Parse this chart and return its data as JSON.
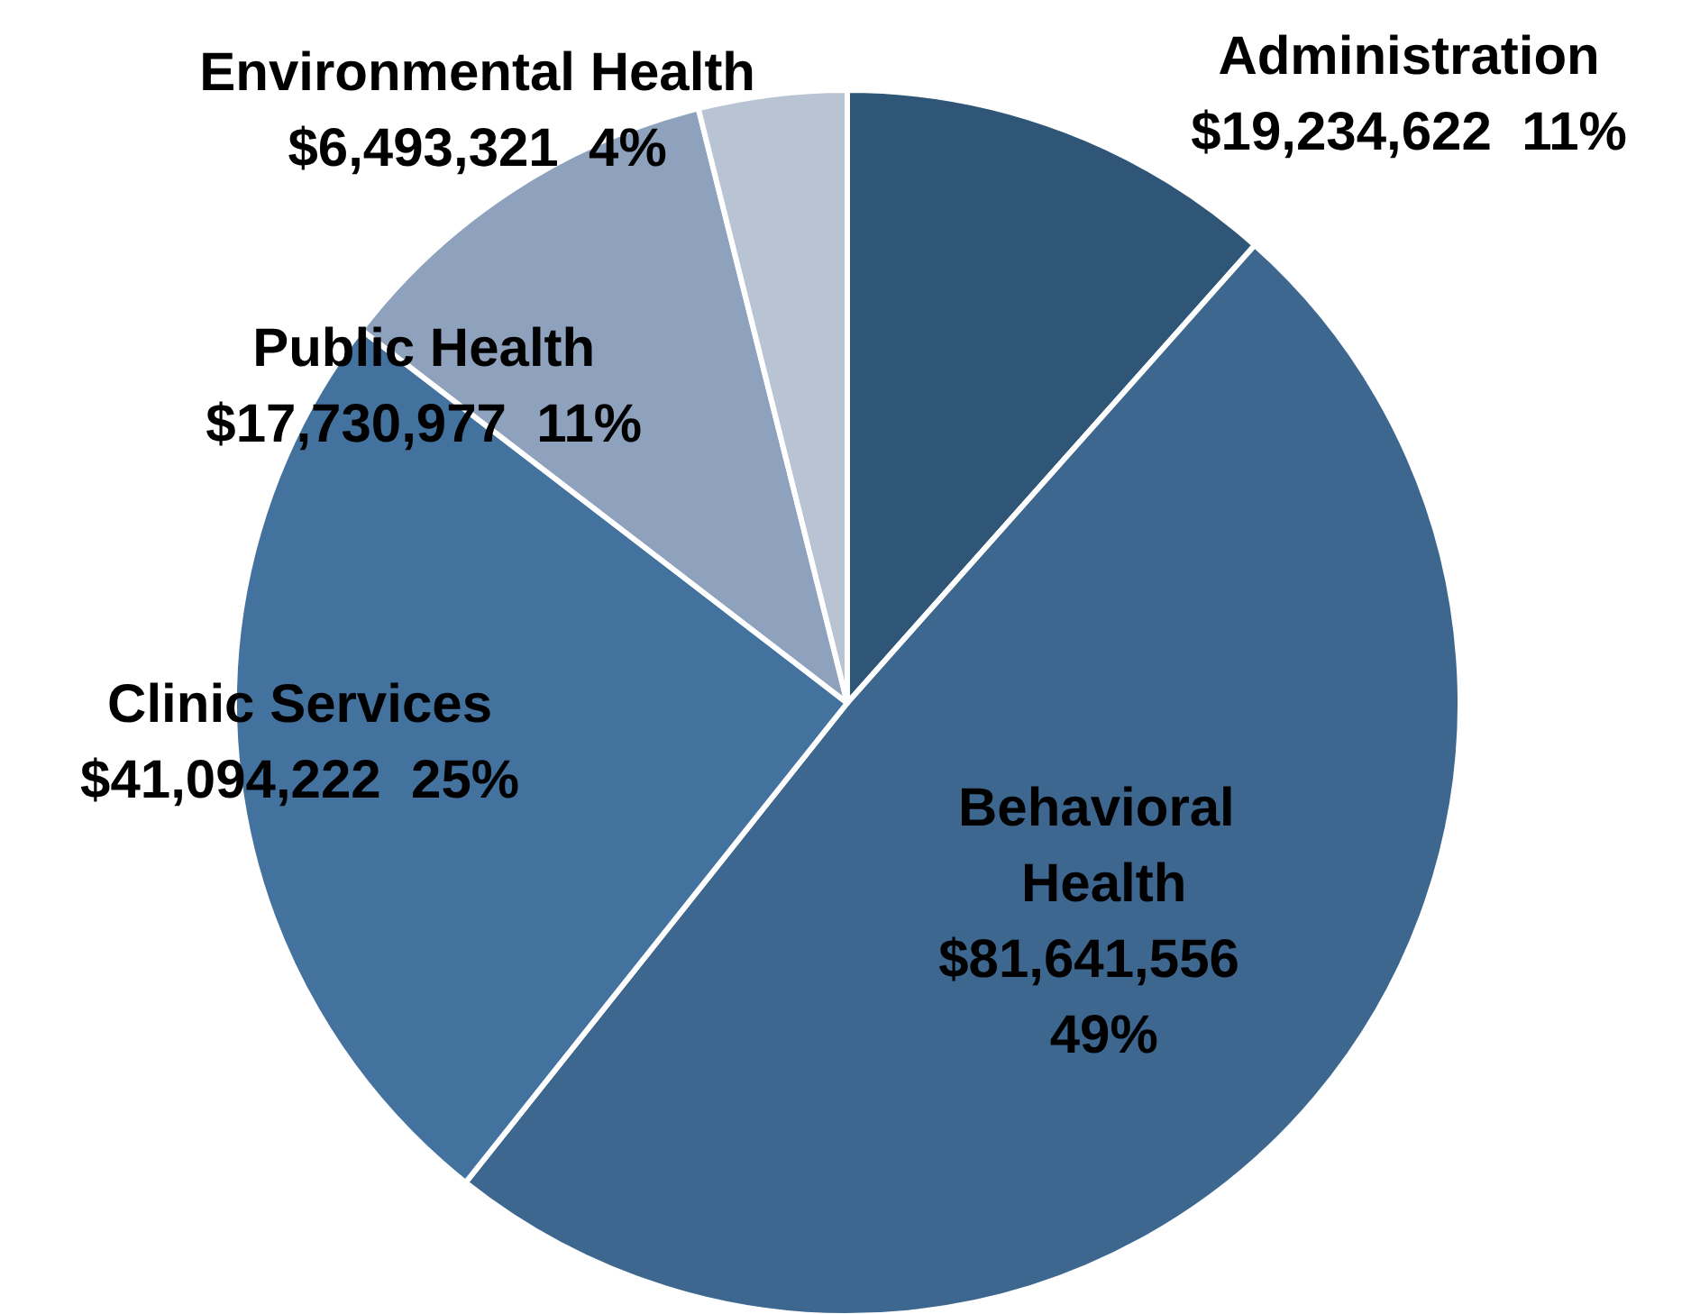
{
  "chart_data": {
    "type": "pie",
    "categories": [
      "Administration",
      "Behavioral Health",
      "Clinic Services",
      "Public Health",
      "Environmental Health"
    ],
    "values": [
      19234622,
      81641556,
      41094222,
      17730977,
      6493321
    ],
    "value_labels": [
      "$19,234,622  11%",
      "$81,641,556  49%",
      "$41,094,222  25%",
      "$17,730,977  11%",
      "$6,493,321  4%"
    ],
    "colors": [
      "#2f5677",
      "#3d678f",
      "#43729f",
      "#8fa2bd",
      "#b8c3d3"
    ],
    "legend": false
  }
}
